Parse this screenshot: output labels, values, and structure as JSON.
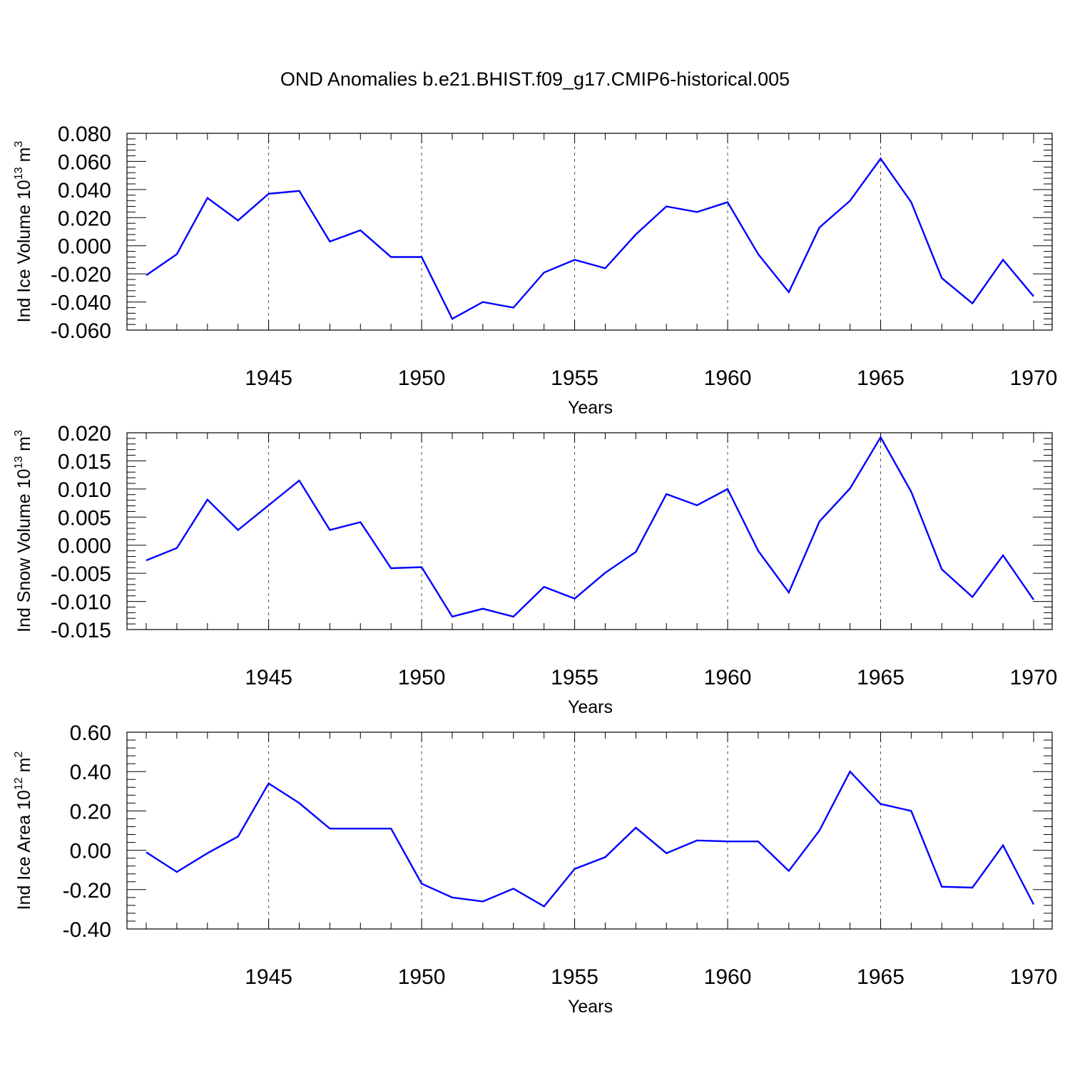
{
  "figure": {
    "title": "OND Anomalies b.e21.BHIST.f09_g17.CMIP6-historical.005",
    "line_color": "#0000ff"
  },
  "chart_data": [
    {
      "type": "line",
      "title": "",
      "xlabel": "Years",
      "ylabel": {
        "text": "Ind Ice Volume 10",
        "exponent": "13",
        "unit": " m",
        "unit_exponent": "3"
      },
      "xlim": [
        1941,
        1970
      ],
      "ylim": [
        -0.06,
        0.08
      ],
      "x_ticks": [
        1945,
        1950,
        1955,
        1960,
        1965,
        1970
      ],
      "y_ticks": [
        -0.06,
        -0.04,
        -0.02,
        0.0,
        0.02,
        0.04,
        0.06,
        0.08
      ],
      "y_tick_labels": [
        "-0.060",
        "-0.040",
        "-0.020",
        "0.000",
        "0.020",
        "0.040",
        "0.060",
        "0.080"
      ],
      "x": [
        1941,
        1942,
        1943,
        1944,
        1945,
        1946,
        1947,
        1948,
        1949,
        1950,
        1951,
        1952,
        1953,
        1954,
        1955,
        1956,
        1957,
        1958,
        1959,
        1960,
        1961,
        1962,
        1963,
        1964,
        1965,
        1966,
        1967,
        1968,
        1969,
        1970
      ],
      "series": [
        {
          "values": [
            -0.021,
            -0.006,
            0.034,
            0.018,
            0.037,
            0.039,
            0.003,
            0.011,
            -0.008,
            -0.008,
            -0.052,
            -0.04,
            -0.044,
            -0.019,
            -0.01,
            -0.016,
            0.008,
            0.028,
            0.024,
            0.031,
            -0.006,
            -0.033,
            0.013,
            0.032,
            0.062,
            0.031,
            -0.023,
            -0.041,
            -0.01,
            -0.036
          ]
        }
      ]
    },
    {
      "type": "line",
      "title": "",
      "xlabel": "Years",
      "ylabel": {
        "text": "Ind Snow Volume 10",
        "exponent": "13",
        "unit": " m",
        "unit_exponent": "3"
      },
      "xlim": [
        1941,
        1970
      ],
      "ylim": [
        -0.015,
        0.02
      ],
      "x_ticks": [
        1945,
        1950,
        1955,
        1960,
        1965,
        1970
      ],
      "y_ticks": [
        -0.015,
        -0.01,
        -0.005,
        0.0,
        0.005,
        0.01,
        0.015,
        0.02
      ],
      "y_tick_labels": [
        "-0.015",
        "-0.010",
        "-0.005",
        "0.000",
        "0.005",
        "0.010",
        "0.015",
        "0.020"
      ],
      "x": [
        1941,
        1942,
        1943,
        1944,
        1945,
        1946,
        1947,
        1948,
        1949,
        1950,
        1951,
        1952,
        1953,
        1954,
        1955,
        1956,
        1957,
        1958,
        1959,
        1960,
        1961,
        1962,
        1963,
        1964,
        1965,
        1966,
        1967,
        1968,
        1969,
        1970
      ],
      "series": [
        {
          "values": [
            -0.0027,
            -0.0005,
            0.0081,
            0.0027,
            0.0071,
            0.0115,
            0.0027,
            0.0041,
            -0.0041,
            -0.0039,
            -0.0127,
            -0.0113,
            -0.0127,
            -0.0074,
            -0.0095,
            -0.0049,
            -0.0012,
            0.0091,
            0.0071,
            0.01,
            -0.001,
            -0.0084,
            0.0042,
            0.0101,
            0.0192,
            0.0095,
            -0.0043,
            -0.0092,
            -0.0018,
            -0.0097
          ]
        }
      ]
    },
    {
      "type": "line",
      "title": "",
      "xlabel": "Years",
      "ylabel": {
        "text": "Ind Ice Area 10",
        "exponent": "12",
        "unit": " m",
        "unit_exponent": "2"
      },
      "xlim": [
        1941,
        1970
      ],
      "ylim": [
        -0.4,
        0.6
      ],
      "x_ticks": [
        1945,
        1950,
        1955,
        1960,
        1965,
        1970
      ],
      "y_ticks": [
        -0.4,
        -0.2,
        0.0,
        0.2,
        0.4,
        0.6
      ],
      "y_tick_labels": [
        "-0.40",
        "-0.20",
        "0.00",
        "0.20",
        "0.40",
        "0.60"
      ],
      "x": [
        1941,
        1942,
        1943,
        1944,
        1945,
        1946,
        1947,
        1948,
        1949,
        1950,
        1951,
        1952,
        1953,
        1954,
        1955,
        1956,
        1957,
        1958,
        1959,
        1960,
        1961,
        1962,
        1963,
        1964,
        1965,
        1966,
        1967,
        1968,
        1969,
        1970
      ],
      "series": [
        {
          "values": [
            -0.01,
            -0.11,
            -0.015,
            0.07,
            0.34,
            0.24,
            0.11,
            0.11,
            0.11,
            -0.17,
            -0.24,
            -0.26,
            -0.195,
            -0.285,
            -0.095,
            -0.035,
            0.115,
            -0.015,
            0.05,
            0.045,
            0.045,
            -0.105,
            0.1,
            0.4,
            0.235,
            0.2,
            -0.185,
            -0.19,
            0.025,
            -0.275
          ]
        }
      ]
    }
  ]
}
